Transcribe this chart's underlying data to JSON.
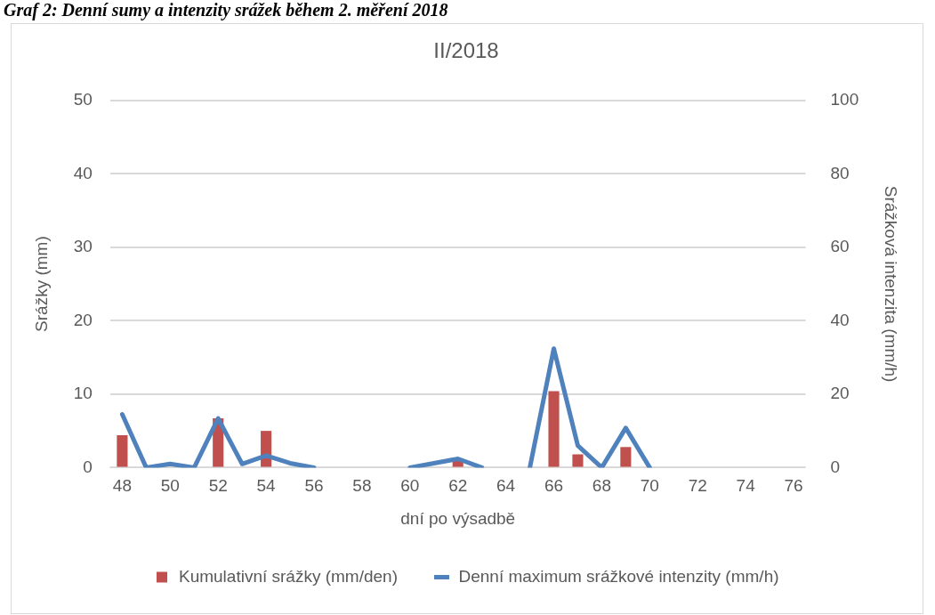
{
  "chart_data": {
    "type": "bar",
    "title": "II/2018",
    "xlabel": "dní po výsadbě",
    "ylabel": "Srážky (mm)",
    "y2label": "Srážková intenzita (mm/h)",
    "annotations": [
      "Graf 2: Denní sumy a intenzity srážek během 2. měření 2018"
    ],
    "categories": [
      "48",
      null,
      "50",
      null,
      "52",
      null,
      "54",
      null,
      "56",
      null,
      "58",
      null,
      "60",
      null,
      "62",
      null,
      "64",
      null,
      "66",
      null,
      "68",
      null,
      "70",
      null,
      "72",
      null,
      "74",
      null,
      "76"
    ],
    "series": [
      {
        "name": "Kumulativní srážky (mm/den)",
        "color": "#c0504d",
        "values": [
          4.4,
          0,
          null,
          0,
          6.7,
          null,
          5.0,
          null,
          0,
          null,
          null,
          null,
          0,
          null,
          1.0,
          0,
          null,
          0,
          10.4,
          1.8,
          0,
          2.8,
          0,
          null,
          null,
          null,
          null,
          null,
          null
        ]
      },
      {
        "name": "Denní maximum srážkové intenzity (mm/h)",
        "type": "line",
        "axis": "y2",
        "color": "#4f81bd",
        "values": [
          14.5,
          0,
          1,
          0,
          13.4,
          1,
          3.3,
          1.2,
          0,
          null,
          null,
          null,
          0,
          1.2,
          2.4,
          0,
          null,
          0,
          32.4,
          6,
          0,
          10.8,
          0,
          null,
          null,
          null,
          null,
          null,
          null
        ]
      }
    ],
    "ylim": [
      0,
      50
    ],
    "yticks": [
      0,
      10,
      20,
      30,
      40,
      50
    ],
    "y2lim": [
      0,
      100
    ],
    "y2ticks": [
      0,
      20,
      40,
      60,
      80,
      100
    ],
    "grid": "y",
    "legend": "bottom",
    "marker": "none",
    "line_style": "solid"
  }
}
